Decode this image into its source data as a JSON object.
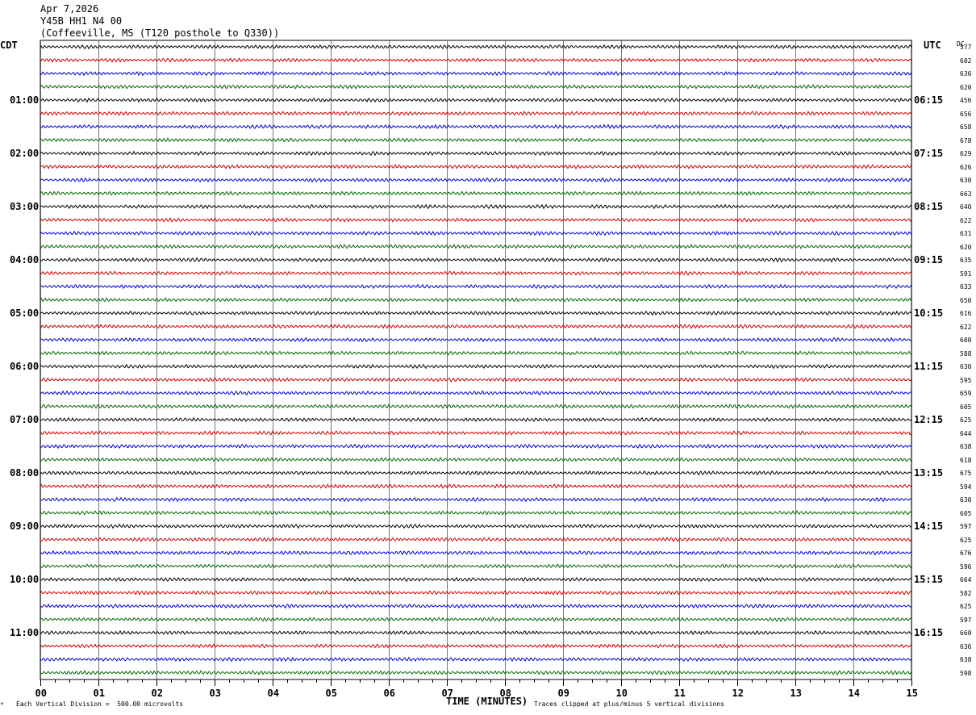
{
  "header": {
    "date": "Apr 7,2026",
    "station": "Y45B HH1 N4 00",
    "location": "(Coffeeville, MS (T120 posthole to Q330))"
  },
  "left_zone": "CDT",
  "right_zone": "UTC",
  "dc_header": "DC",
  "footer": {
    "scale_note": "Each Vertical Division =  500.00 microvolts",
    "clip_note": "Traces clipped at plus/minus 5 vertical divisions",
    "mark": "ᴹ"
  },
  "chart_data": {
    "type": "line",
    "title": "",
    "xlabel": "TIME (MINUTES)",
    "xlim": [
      0,
      15
    ],
    "x_ticks": [
      "00",
      "01",
      "02",
      "03",
      "04",
      "05",
      "06",
      "07",
      "08",
      "09",
      "10",
      "11",
      "12",
      "13",
      "14",
      "15"
    ],
    "trace_colors": [
      "#000000",
      "#cc0000",
      "#0000cc",
      "#006600"
    ],
    "rows_per_hour": 4,
    "row_count": 48,
    "left_hour_labels": [
      "01:00",
      "02:00",
      "03:00",
      "04:00",
      "05:00",
      "06:00",
      "07:00",
      "08:00",
      "09:00",
      "10:00",
      "11:00"
    ],
    "right_hour_labels": [
      "06:15",
      "07:15",
      "08:15",
      "09:15",
      "10:15",
      "11:15",
      "12:15",
      "13:15",
      "14:15",
      "15:15",
      "16:15"
    ],
    "dc_offsets": [
      577,
      602,
      636,
      620,
      456,
      656,
      658,
      678,
      629,
      626,
      630,
      663,
      640,
      622,
      631,
      620,
      635,
      591,
      633,
      650,
      616,
      622,
      600,
      588,
      630,
      595,
      659,
      605,
      625,
      644,
      638,
      618,
      675,
      594,
      630,
      605,
      597,
      625,
      676,
      596,
      664,
      582,
      625,
      597,
      660,
      636,
      638,
      598
    ]
  }
}
